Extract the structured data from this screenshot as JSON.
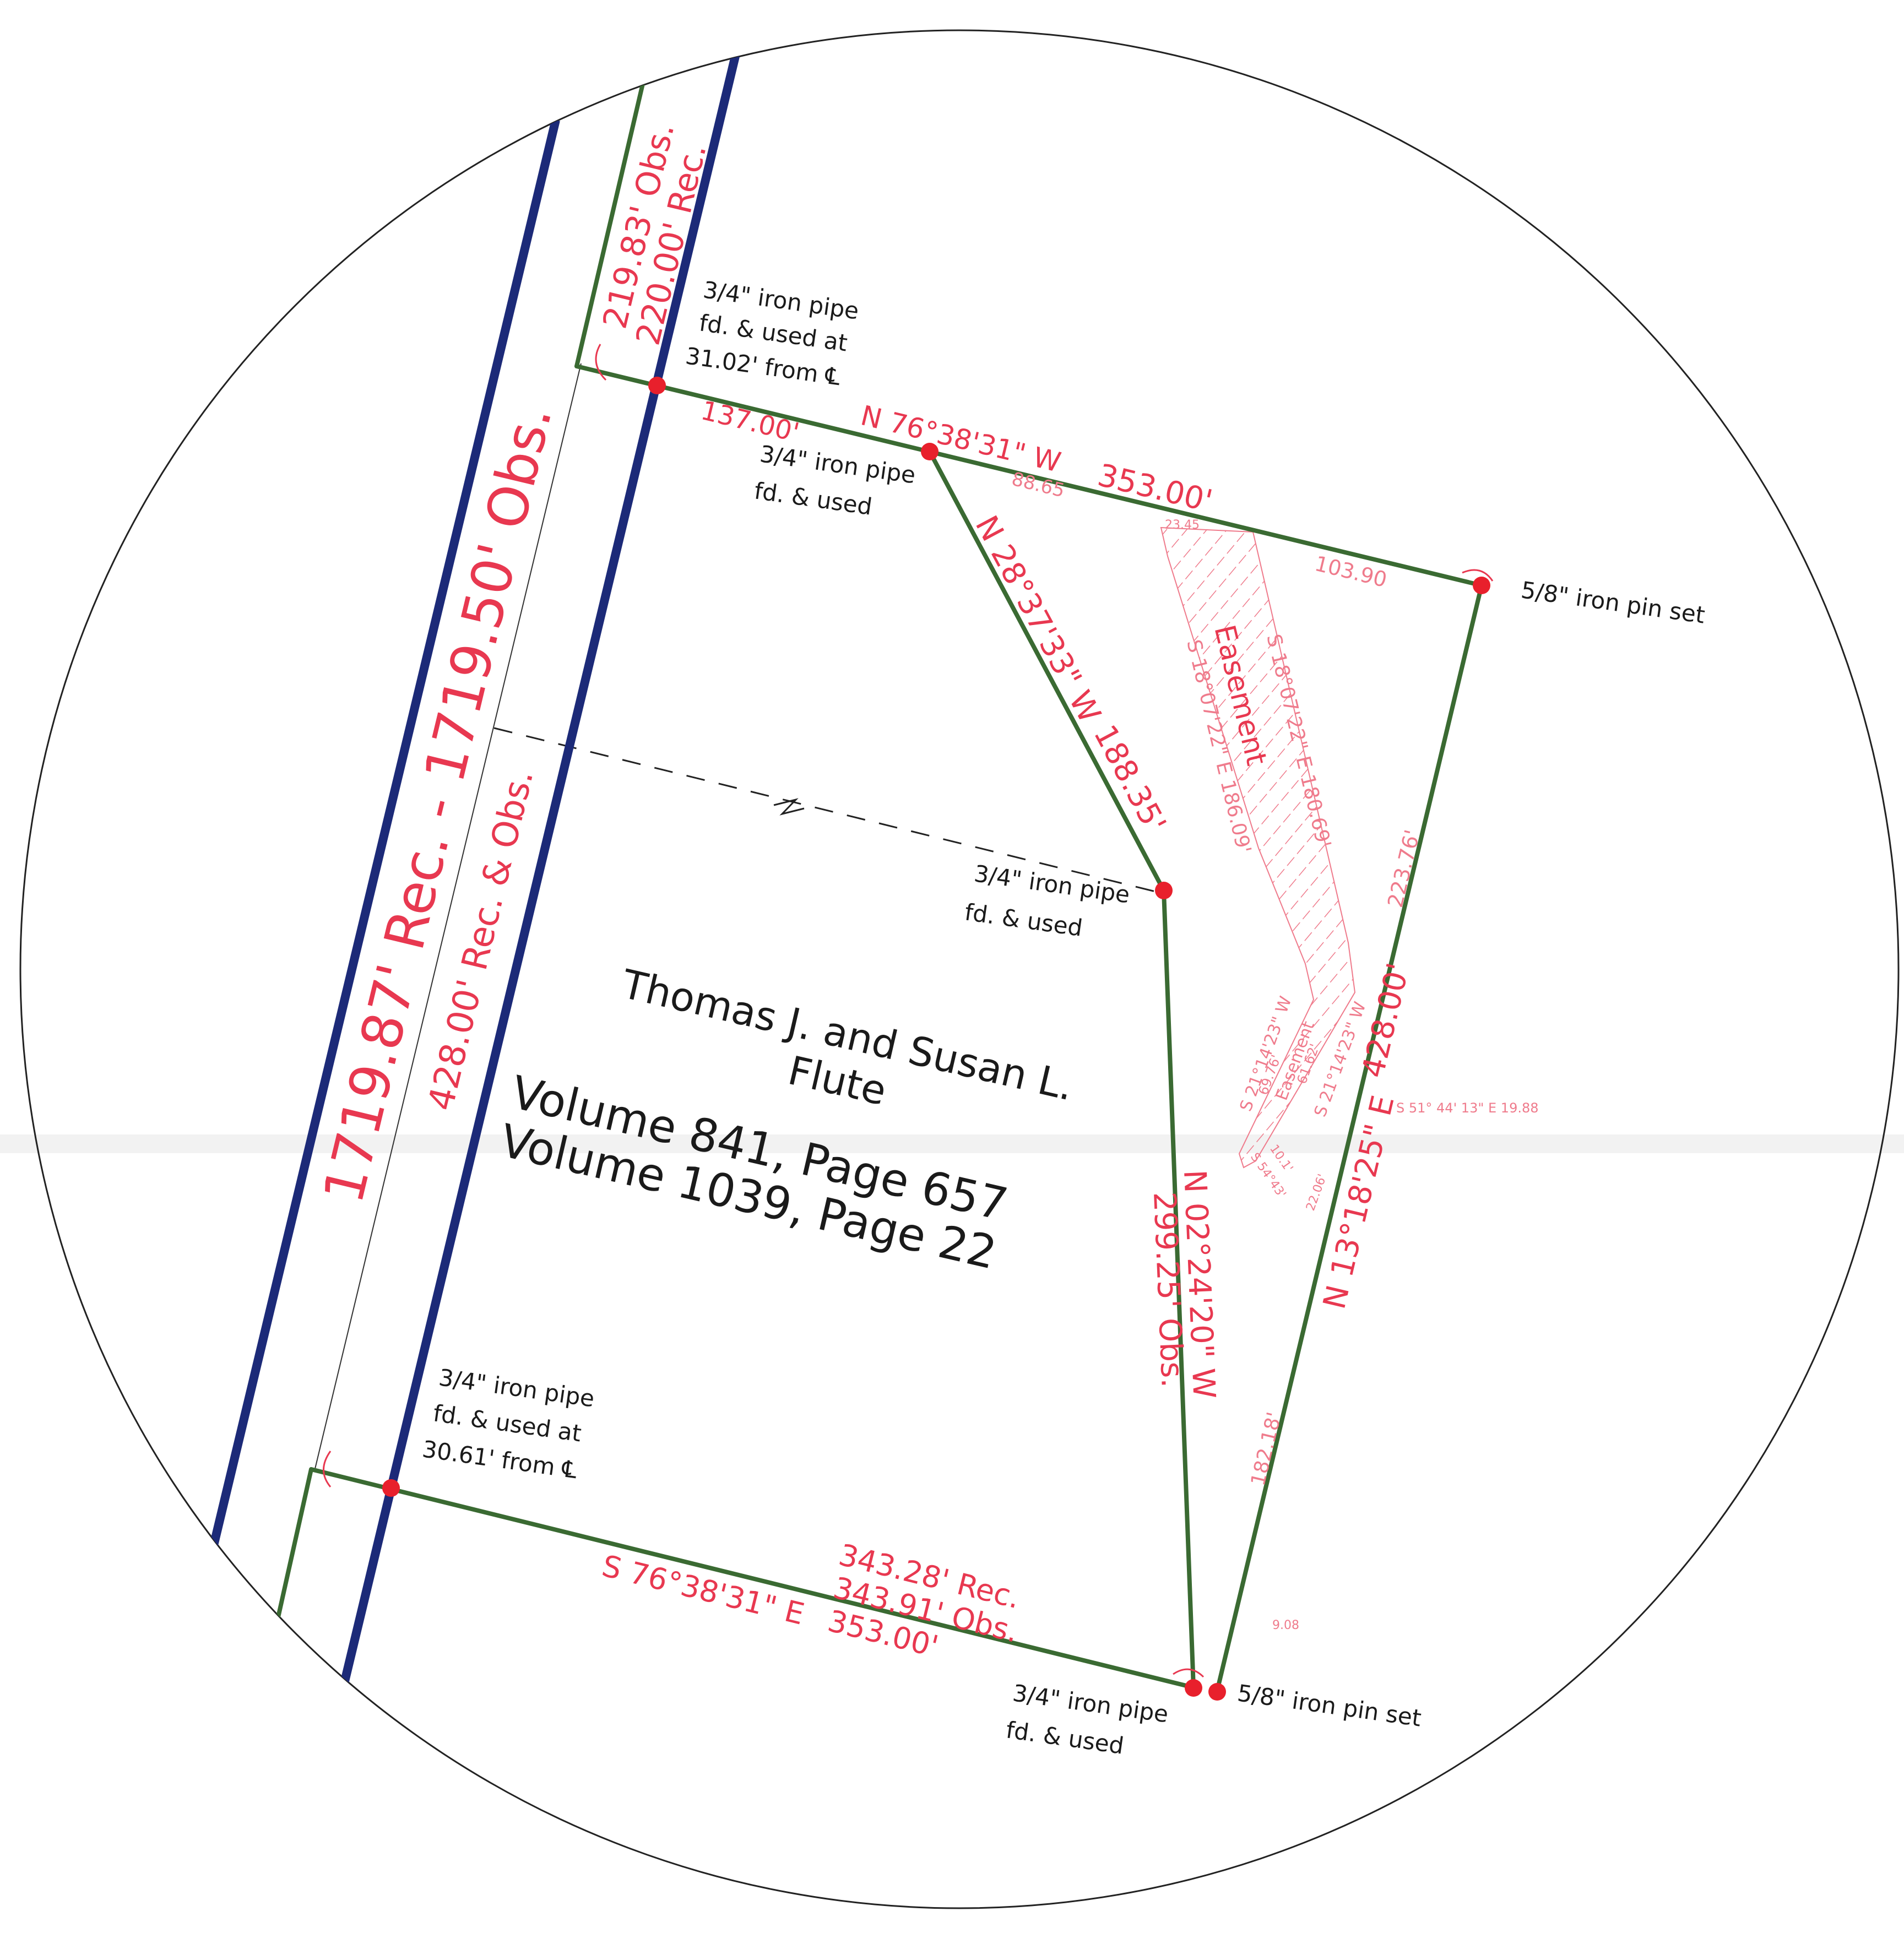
{
  "owner": {
    "name_line1": "Thomas J. and Susan L.",
    "name_line2": "Flute",
    "deed_1": "Volume 841, Page 657",
    "deed_2": "Volume 1039, Page 22"
  },
  "road": {
    "length": "1719.87' Rec. - 1719.50' Obs.",
    "frontage": "428.00' Rec. & Obs.",
    "top_obs": "219.83' Obs.",
    "top_rec": "220.00' Rec."
  },
  "monuments": {
    "top_pipe_l1": "3/4\" iron pipe",
    "top_pipe_l2": "fd. & used at",
    "top_pipe_l3": "31.02' from ℄",
    "mid_pipe_l1": "3/4\" iron pipe",
    "mid_pipe_l2": "fd. & used",
    "ne_pin": "5/8\" iron pin set",
    "center_pipe_l1": "3/4\" iron pipe",
    "center_pipe_l2": "fd. & used",
    "bottom_pipe_l1": "3/4\" iron pipe",
    "bottom_pipe_l2": "fd. & used at",
    "bottom_pipe_l3": "30.61' from ℄",
    "se_pipe_l1": "3/4\" iron pipe",
    "se_pipe_l2": "fd. & used",
    "se_pin": "5/8\" iron pin set"
  },
  "calls": {
    "north_dist_a": "137.00'",
    "north_bearing": "N 76°38'31\" W",
    "north_sub": "88.65",
    "north_dist_b": "353.00'",
    "north_sub_b": "103.90",
    "diag_bearing": "N 28°37'33\" W",
    "diag_dist": "188.35'",
    "east_sub_a": "223.76'",
    "east_dist": "428.00'",
    "east_bearing": "N 13°18'25\" E",
    "east_sub_b": "182.18'",
    "south_bearing": "S 76°38'31\" E",
    "south_rec": "343.28' Rec.",
    "south_obs": "343.91' Obs.",
    "south_dist": "353.00'",
    "inner_bearing": "N 02°24'20\" W",
    "inner_dist": "299.25' Obs.",
    "tie_small": "9.08",
    "tie_bearing": "S 51° 44' 13\" E 19.88"
  },
  "easement": {
    "label": "Easement",
    "west_call": "S 18°07'22\" E 186.09'",
    "east_call": "S 18°07'22\" E 180.69'",
    "top_small": "23.45",
    "lower_label": "Easement",
    "lower_w": "S 21°14'23\" W",
    "lower_w_dist": "69.76'",
    "lower_e": "S 21°14'23\" W",
    "lower_e_dist": "61.62'",
    "lower_s1": "S 51°44'13\" E",
    "lower_s1_dist": "22.06'",
    "lower_s2": "S 54°43'",
    "lower_s2_dist": "10.1'"
  },
  "colors": {
    "boundary": "#3a6a32",
    "road": "#1c2a78",
    "annotation": "#e83850",
    "monument": "#e8202c",
    "text": "#1a1a1a"
  }
}
